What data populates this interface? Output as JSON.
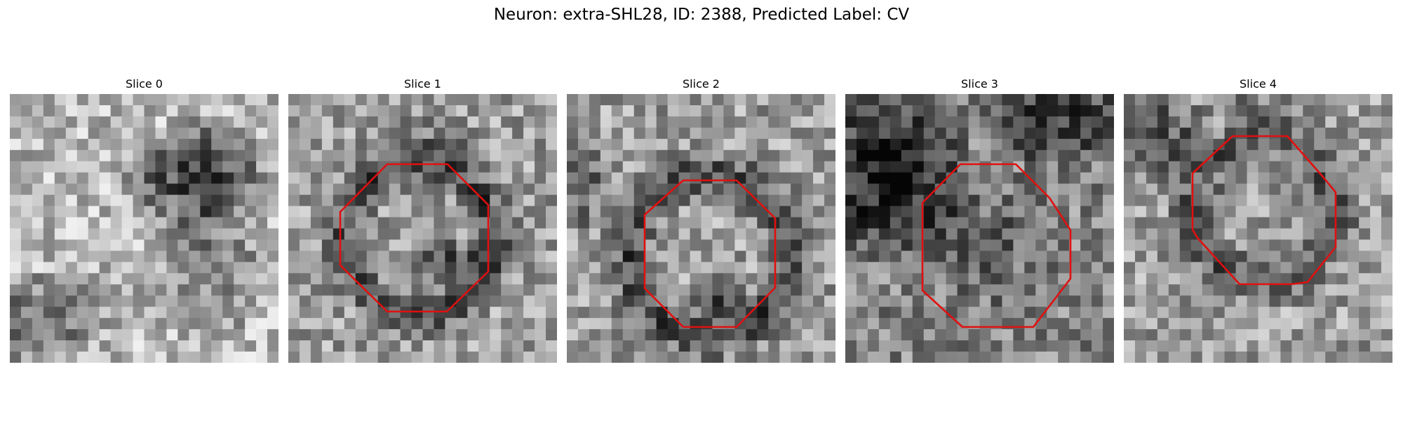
{
  "figure": {
    "title": "Neuron: extra-SHL28, ID: 2388, Predicted Label: CV",
    "overlay_color": "#e01010",
    "colormap": "gray",
    "grid_size": 24,
    "panels": [
      {
        "label": "Slice 0",
        "has_outline": false
      },
      {
        "label": "Slice 1",
        "has_outline": true
      },
      {
        "label": "Slice 2",
        "has_outline": true
      },
      {
        "label": "Slice 3",
        "has_outline": true
      },
      {
        "label": "Slice 4",
        "has_outline": true
      }
    ]
  }
}
